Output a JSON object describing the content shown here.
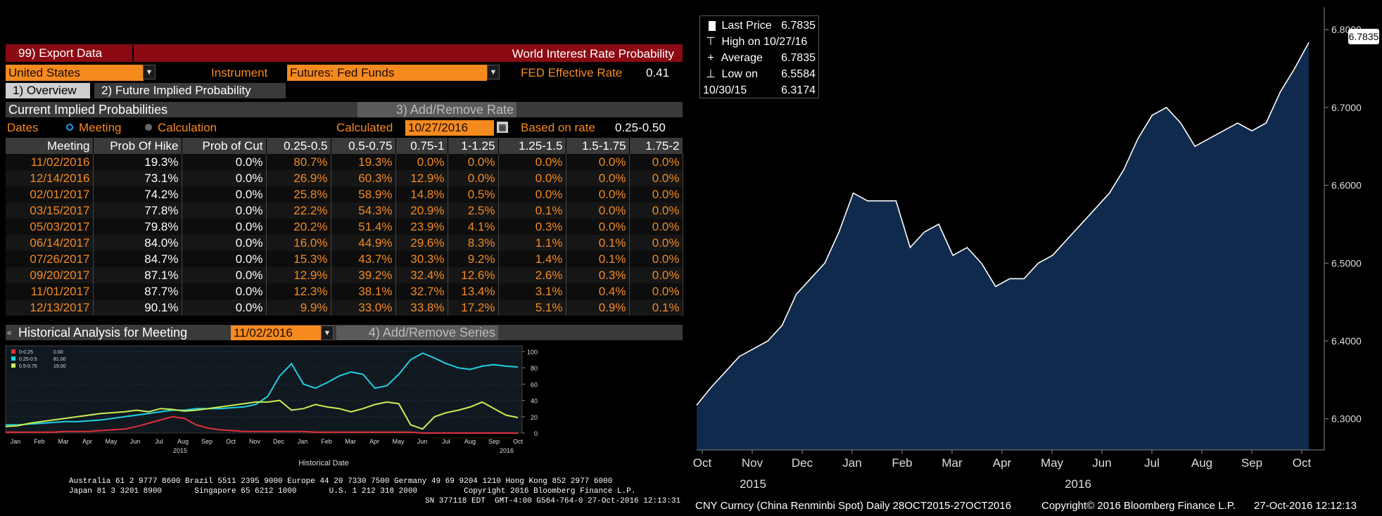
{
  "left": {
    "toolbar": {
      "export_label": "99) Export Data",
      "title": "World Interest Rate Probability"
    },
    "country": {
      "value": "United States"
    },
    "instrument": {
      "label": "Instrument",
      "value": "Futures: Fed Funds"
    },
    "fed_effective": {
      "label": "FED Effective Rate",
      "value": "0.41"
    },
    "tabs": [
      {
        "label": "1) Overview"
      },
      {
        "label": "2) Future Implied Probability"
      }
    ],
    "current_section": {
      "title": "Current Implied Probabilities",
      "add_remove": "3) Add/Remove Rate"
    },
    "dates": {
      "label": "Dates",
      "opt_meeting": "Meeting",
      "opt_calculation": "Calculation",
      "calculated_label": "Calculated",
      "calculated_value": "10/27/2016",
      "based_label": "Based on rate",
      "based_value": "0.25-0.50"
    },
    "table": {
      "headers": [
        "Meeting",
        "Prob Of Hike",
        "Prob of Cut",
        "0.25-0.5",
        "0.5-0.75",
        "0.75-1",
        "1-1.25",
        "1.25-1.5",
        "1.5-1.75",
        "1.75-2"
      ],
      "rows": [
        [
          "11/02/2016",
          "19.3%",
          "0.0%",
          "80.7%",
          "19.3%",
          "0.0%",
          "0.0%",
          "0.0%",
          "0.0%",
          "0.0%"
        ],
        [
          "12/14/2016",
          "73.1%",
          "0.0%",
          "26.9%",
          "60.3%",
          "12.9%",
          "0.0%",
          "0.0%",
          "0.0%",
          "0.0%"
        ],
        [
          "02/01/2017",
          "74.2%",
          "0.0%",
          "25.8%",
          "58.9%",
          "14.8%",
          "0.5%",
          "0.0%",
          "0.0%",
          "0.0%"
        ],
        [
          "03/15/2017",
          "77.8%",
          "0.0%",
          "22.2%",
          "54.3%",
          "20.9%",
          "2.5%",
          "0.1%",
          "0.0%",
          "0.0%"
        ],
        [
          "05/03/2017",
          "79.8%",
          "0.0%",
          "20.2%",
          "51.4%",
          "23.9%",
          "4.1%",
          "0.3%",
          "0.0%",
          "0.0%"
        ],
        [
          "06/14/2017",
          "84.0%",
          "0.0%",
          "16.0%",
          "44.9%",
          "29.6%",
          "8.3%",
          "1.1%",
          "0.1%",
          "0.0%"
        ],
        [
          "07/26/2017",
          "84.7%",
          "0.0%",
          "15.3%",
          "43.7%",
          "30.3%",
          "9.2%",
          "1.4%",
          "0.1%",
          "0.0%"
        ],
        [
          "09/20/2017",
          "87.1%",
          "0.0%",
          "12.9%",
          "39.2%",
          "32.4%",
          "12.6%",
          "2.6%",
          "0.3%",
          "0.0%"
        ],
        [
          "11/01/2017",
          "87.7%",
          "0.0%",
          "12.3%",
          "38.1%",
          "32.7%",
          "13.4%",
          "3.1%",
          "0.4%",
          "0.0%"
        ],
        [
          "12/13/2017",
          "90.1%",
          "0.0%",
          "9.9%",
          "33.0%",
          "33.8%",
          "17.2%",
          "5.1%",
          "0.9%",
          "0.1%"
        ]
      ]
    },
    "historical": {
      "title": "Historical Analysis for Meeting",
      "meeting_value": "11/02/2016",
      "add_remove": "4) Add/Remove Series"
    },
    "footer": {
      "line1": "Australia 61 2 9777 8600 Brazil 5511 2395 9000 Europe 44 20 7330 7500 Germany 49 69 9204 1210 Hong Kong 852 2977 6000",
      "line2": "Japan 81 3 3201 8900       Singapore 65 6212 1000       U.S. 1 212 318 2000          Copyright 2016 Bloomberg Finance L.P.",
      "line3": "SN 377118 EDT  GMT-4:00 G564-764-0 27-Oct-2016 12:13:31"
    }
  },
  "right": {
    "legend": [
      {
        "label": "Last Price",
        "value": "6.7835"
      },
      {
        "label": "High on 10/27/16",
        "value": "6.7835"
      },
      {
        "label": "Average",
        "value": "6.5584"
      },
      {
        "label": "Low on 10/30/15",
        "value": "6.3174"
      }
    ],
    "last_tag": "6.7835",
    "footer": {
      "ticker": "CNY Curncy (China Renminbi Spot)  Daily 28OCT2015-27OCT2016",
      "copyright": "Copyright© 2016 Bloomberg Finance L.P.",
      "timestamp": "27-Oct-2016 12:12:13"
    }
  },
  "chart_data": [
    {
      "type": "line",
      "title": "",
      "xlabel": "Historical Date",
      "ylabel": "",
      "ylim": [
        0,
        100
      ],
      "y_ticks": [
        0,
        20,
        40,
        60,
        80,
        100
      ],
      "x_tick_labels": [
        "Jan",
        "Feb",
        "Mar",
        "Apr",
        "May",
        "Jun",
        "Jul",
        "Aug",
        "Sep",
        "Oct",
        "Nov",
        "Dec",
        "Jan",
        "Feb",
        "Mar",
        "Apr",
        "May",
        "Jun",
        "Jul",
        "Aug",
        "Sep",
        "Oct"
      ],
      "year_labels": [
        "2015",
        "2016"
      ],
      "legend_placement": "top-left",
      "series": [
        {
          "name": "0-0.25",
          "last": "0.00",
          "color": "#e0303a",
          "values": [
            1,
            1,
            1,
            1,
            1,
            2,
            2,
            2,
            3,
            4,
            5,
            8,
            12,
            16,
            20,
            18,
            10,
            6,
            4,
            3,
            2,
            2,
            2,
            2,
            2,
            2,
            1,
            1,
            1,
            1,
            1,
            1,
            1,
            1,
            1,
            0,
            0,
            0,
            0,
            0,
            0,
            0,
            0,
            0
          ]
        },
        {
          "name": "0.25-0.5",
          "last": "81.00",
          "color": "#20d0e0",
          "values": [
            10,
            10,
            11,
            12,
            13,
            14,
            14,
            15,
            16,
            18,
            20,
            22,
            24,
            26,
            28,
            28,
            30,
            30,
            30,
            31,
            32,
            35,
            45,
            70,
            85,
            60,
            55,
            62,
            70,
            75,
            72,
            55,
            58,
            72,
            90,
            98,
            92,
            85,
            80,
            78,
            82,
            84,
            82,
            81
          ]
        },
        {
          "name": "0.5-0.75",
          "last": "19.00",
          "color": "#c8f050",
          "values": [
            8,
            9,
            12,
            14,
            16,
            18,
            20,
            22,
            24,
            25,
            26,
            28,
            26,
            30,
            29,
            27,
            28,
            30,
            32,
            34,
            36,
            38,
            38,
            40,
            28,
            30,
            35,
            32,
            30,
            26,
            30,
            35,
            38,
            36,
            10,
            5,
            20,
            25,
            28,
            32,
            38,
            30,
            22,
            19
          ]
        }
      ]
    },
    {
      "type": "area",
      "title": "",
      "xlabel": "",
      "ylabel": "",
      "ylim": [
        6.26,
        6.82
      ],
      "y_ticks": [
        6.3,
        6.4,
        6.5,
        6.6,
        6.7,
        6.8
      ],
      "y_tick_labels": [
        "6.3000",
        "6.4000",
        "6.5000",
        "6.6000",
        "6.7000",
        "6.8000"
      ],
      "x_tick_labels": [
        "Oct",
        "Nov",
        "Dec",
        "Jan",
        "Feb",
        "Mar",
        "Apr",
        "May",
        "Jun",
        "Jul",
        "Aug",
        "Sep",
        "Oct"
      ],
      "year_labels": [
        "2015",
        "2016"
      ],
      "grid": false,
      "legend_placement": "top-left",
      "series": [
        {
          "name": "CNY Curncy",
          "color": "#ffffff",
          "fill": "#0f2a4c",
          "values": [
            6.3174,
            6.34,
            6.36,
            6.38,
            6.39,
            6.4,
            6.42,
            6.46,
            6.48,
            6.5,
            6.54,
            6.59,
            6.58,
            6.58,
            6.58,
            6.52,
            6.54,
            6.55,
            6.51,
            6.52,
            6.5,
            6.47,
            6.48,
            6.48,
            6.5,
            6.51,
            6.53,
            6.55,
            6.57,
            6.59,
            6.62,
            6.66,
            6.69,
            6.7,
            6.68,
            6.65,
            6.66,
            6.67,
            6.68,
            6.67,
            6.68,
            6.72,
            6.75,
            6.7835
          ]
        }
      ]
    }
  ]
}
